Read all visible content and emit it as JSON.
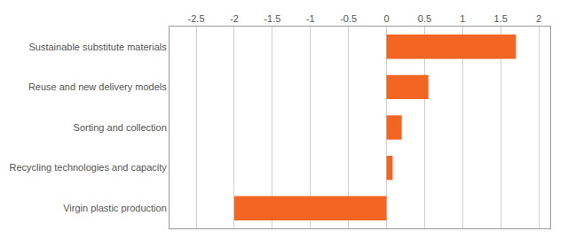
{
  "chart_data": {
    "type": "bar",
    "orientation": "horizontal",
    "categories": [
      "Virgin plastic production",
      "Recycling technologies and capacity",
      "Sorting and collection",
      "Reuse and new delivery models",
      "Sustainable substitute materials"
    ],
    "values": [
      -2.0,
      0.08,
      0.2,
      0.55,
      1.7
    ],
    "color": "#F26522",
    "xlim": [
      -2.85,
      2.15
    ],
    "xticks": [
      -2.5,
      -2,
      -1.5,
      -1,
      -0.5,
      0,
      0.5,
      1,
      1.5,
      2
    ],
    "grid": true
  }
}
